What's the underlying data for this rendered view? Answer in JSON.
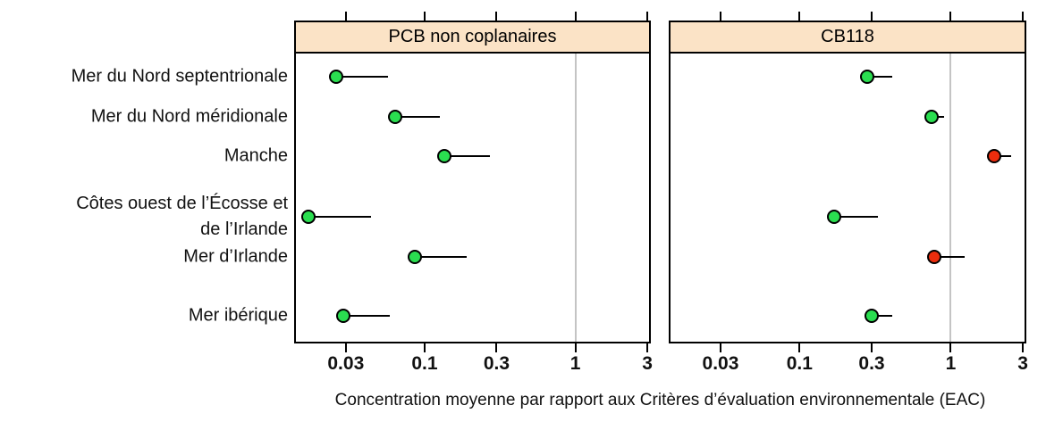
{
  "figure": {
    "x_axis_label": "Concentration moyenne  par rapport aux Critères d’évaluation environnementale (EAC)",
    "y_categories": [
      {
        "lines": [
          "Mer du Nord septentrionale"
        ]
      },
      {
        "lines": [
          "Mer du Nord méridionale"
        ]
      },
      {
        "lines": [
          "Manche"
        ]
      },
      {
        "lines": [
          "Côtes ouest de l’Écosse et",
          "de l’Irlande"
        ]
      },
      {
        "lines": [
          "Mer d’Irlande"
        ]
      },
      {
        "lines": [
          "Mer ibérique"
        ]
      }
    ]
  },
  "colors": {
    "green": "#2ADE50",
    "red": "#EC2D0D",
    "header_bg": "#FBE3C6",
    "reference_line": "#C4C4C4",
    "border": "#000000"
  },
  "chart_data": [
    {
      "type": "scatter",
      "title": "PCB non coplanaires",
      "x_scale": "log",
      "x_tick_labels": [
        "0.03",
        "0.1",
        "0.3",
        "1",
        "3"
      ],
      "x_tick_values": [
        0.03,
        0.1,
        0.3,
        1,
        3
      ],
      "x_range": [
        0.014,
        3.08
      ],
      "reference_line_x": 1,
      "categories": [
        "Mer du Nord septentrionale",
        "Mer du Nord méridionale",
        "Manche",
        "Côtes ouest de l’Écosse et de l’Irlande",
        "Mer d’Irlande",
        "Mer ibérique"
      ],
      "points": [
        {
          "mean": 0.026,
          "upper": 0.057,
          "status": "green"
        },
        {
          "mean": 0.064,
          "upper": 0.126,
          "status": "green"
        },
        {
          "mean": 0.135,
          "upper": 0.27,
          "status": "green"
        },
        {
          "mean": 0.017,
          "upper": 0.044,
          "status": "green"
        },
        {
          "mean": 0.086,
          "upper": 0.19,
          "status": "green"
        },
        {
          "mean": 0.029,
          "upper": 0.059,
          "status": "green"
        }
      ]
    },
    {
      "type": "scatter",
      "title": "CB118",
      "x_scale": "log",
      "x_tick_labels": [
        "0.03",
        "0.1",
        "0.3",
        "1",
        "3"
      ],
      "x_tick_values": [
        0.03,
        0.1,
        0.3,
        1,
        3
      ],
      "x_range": [
        0.014,
        3.08
      ],
      "reference_line_x": 1,
      "categories": [
        "Mer du Nord septentrionale",
        "Mer du Nord méridionale",
        "Manche",
        "Côtes ouest de l’Écosse et de l’Irlande",
        "Mer d’Irlande",
        "Mer ibérique"
      ],
      "points": [
        {
          "mean": 0.28,
          "upper": 0.41,
          "status": "green"
        },
        {
          "mean": 0.75,
          "upper": 0.91,
          "status": "green"
        },
        {
          "mean": 1.94,
          "upper": 2.5,
          "status": "red"
        },
        {
          "mean": 0.17,
          "upper": 0.33,
          "status": "green"
        },
        {
          "mean": 0.78,
          "upper": 1.23,
          "status": "red"
        },
        {
          "mean": 0.3,
          "upper": 0.41,
          "status": "green"
        }
      ]
    }
  ]
}
